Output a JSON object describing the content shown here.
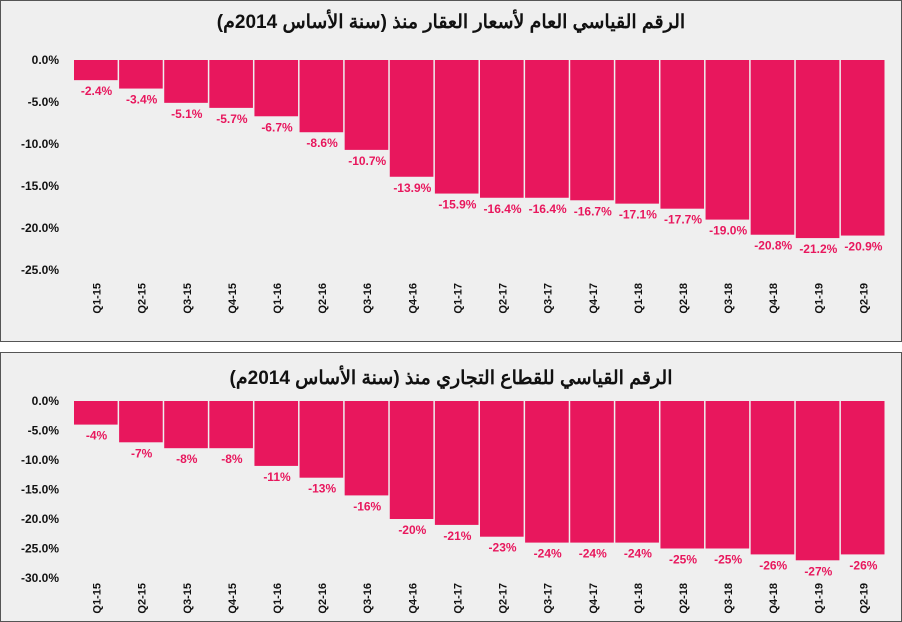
{
  "chart_data": [
    {
      "type": "bar",
      "title": "الرقم القياسي العام لأسعار العقار منذ (سنة الأساس 2014م)",
      "categories": [
        "Q1-15",
        "Q2-15",
        "Q3-15",
        "Q4-15",
        "Q1-16",
        "Q2-16",
        "Q3-16",
        "Q4-16",
        "Q1-17",
        "Q2-17",
        "Q3-17",
        "Q4-17",
        "Q1-18",
        "Q2-18",
        "Q3-18",
        "Q4-18",
        "Q1-19",
        "Q2-19"
      ],
      "values": [
        -2.4,
        -3.4,
        -5.1,
        -5.7,
        -6.7,
        -8.6,
        -10.7,
        -13.9,
        -15.9,
        -16.4,
        -16.4,
        -16.7,
        -17.1,
        -17.7,
        -19.0,
        -20.8,
        -21.2,
        -20.9
      ],
      "data_labels": [
        "-2.4%",
        "-3.4%",
        "-5.1%",
        "-5.7%",
        "-6.7%",
        "-8.6%",
        "-10.7%",
        "-13.9%",
        "-15.9%",
        "-16.4%",
        "-16.4%",
        "-16.7%",
        "-17.1%",
        "-17.7%",
        "-19.0%",
        "-20.8%",
        "-21.2%",
        "-20.9%"
      ],
      "yticks": [
        "0.0%",
        "-5.0%",
        "-10.0%",
        "-15.0%",
        "-20.0%",
        "-25.0%"
      ],
      "ylim": [
        -25,
        0
      ],
      "grid": false,
      "bar_color": "#e8175d"
    },
    {
      "type": "bar",
      "title": "الرقم القياسي للقطاع التجاري منذ (سنة الأساس 2014م)",
      "categories": [
        "Q1-15",
        "Q2-15",
        "Q3-15",
        "Q4-15",
        "Q1-16",
        "Q2-16",
        "Q3-16",
        "Q4-16",
        "Q1-17",
        "Q2-17",
        "Q3-17",
        "Q4-17",
        "Q1-18",
        "Q2-18",
        "Q3-18",
        "Q4-18",
        "Q1-19",
        "Q2-19"
      ],
      "values": [
        -4,
        -7,
        -8,
        -8,
        -11,
        -13,
        -16,
        -20,
        -21,
        -23,
        -24,
        -24,
        -24,
        -25,
        -25,
        -26,
        -27,
        -26
      ],
      "data_labels": [
        "-4%",
        "-7%",
        "-8%",
        "-8%",
        "-11%",
        "-13%",
        "-16%",
        "-20%",
        "-21%",
        "-23%",
        "-24%",
        "-24%",
        "-24%",
        "-25%",
        "-25%",
        "-26%",
        "-27%",
        "-26%"
      ],
      "yticks": [
        "0.0%",
        "-5.0%",
        "-10.0%",
        "-15.0%",
        "-20.0%",
        "-25.0%",
        "-30.0%"
      ],
      "ylim": [
        -30,
        0
      ],
      "grid": false,
      "bar_color": "#e8175d"
    }
  ]
}
